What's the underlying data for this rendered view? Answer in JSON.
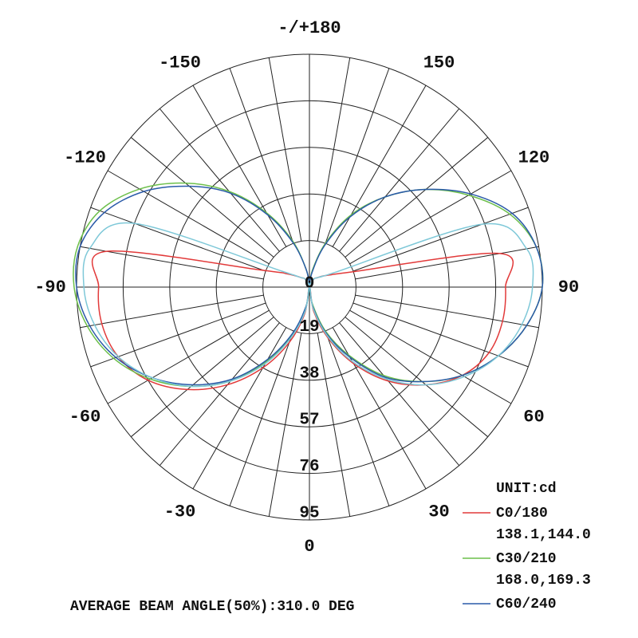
{
  "chart_data": {
    "type": "polar",
    "unit_label": "UNIT:cd",
    "footnote": "AVERAGE BEAM ANGLE(50%):310.0 DEG",
    "angles": [
      -180,
      -170,
      -160,
      -150,
      -140,
      -130,
      -120,
      -110,
      -100,
      -90,
      -80,
      -70,
      -60,
      -50,
      -40,
      -30,
      -20,
      -10,
      0,
      10,
      20,
      30,
      40,
      50,
      60,
      70,
      80,
      90,
      100,
      110,
      120,
      130,
      140,
      150,
      160,
      170,
      180
    ],
    "rlim": [
      0,
      95
    ],
    "rticks": [
      0,
      19,
      38,
      57,
      76,
      95
    ],
    "angle_ticks": [
      {
        "value": 180,
        "label": "-/+180"
      },
      150,
      120,
      90,
      60,
      30,
      0,
      -30,
      -60,
      -90,
      -120,
      -150
    ],
    "series": [
      {
        "name": "C0/180",
        "note": "138.1,144.0",
        "color": "#e23a3a",
        "values": [
          0,
          1,
          2,
          4,
          5,
          7,
          11,
          20,
          84,
          86,
          86,
          83,
          76,
          65,
          52,
          38,
          24,
          11,
          0,
          10,
          22,
          36,
          50,
          62,
          72,
          78,
          80,
          80,
          79,
          18,
          10,
          7,
          5,
          4,
          2,
          1,
          0
        ]
      },
      {
        "name": "C30/210",
        "note": "168.0,169.3",
        "color": "#6cbf4a",
        "values": [
          0,
          7,
          20,
          35,
          51,
          66,
          80,
          91,
          96,
          96,
          92,
          85,
          75,
          63,
          50,
          35,
          21,
          8,
          0,
          7,
          19,
          32,
          47,
          60,
          72,
          82,
          90,
          95,
          94,
          87,
          75,
          62,
          48,
          34,
          19,
          7,
          0
        ]
      },
      {
        "name": "C60/240",
        "color": "#2a5aa8",
        "values": [
          0,
          7,
          19,
          34,
          50,
          64,
          78,
          89,
          95,
          95,
          91,
          84,
          74,
          62,
          49,
          34,
          20,
          8,
          0,
          8,
          20,
          33,
          48,
          60,
          72,
          82,
          90,
          95,
          94,
          88,
          76,
          62,
          48,
          33,
          18,
          6,
          0
        ]
      },
      {
        "color": "#7ec8d8",
        "values": [
          0,
          1,
          2,
          4,
          5,
          7,
          13,
          76,
          91,
          92,
          89,
          83,
          74,
          63,
          50,
          36,
          22,
          10,
          0,
          9,
          21,
          35,
          49,
          62,
          73,
          82,
          88,
          91,
          90,
          75,
          12,
          7,
          5,
          4,
          2,
          1,
          0
        ]
      }
    ]
  }
}
